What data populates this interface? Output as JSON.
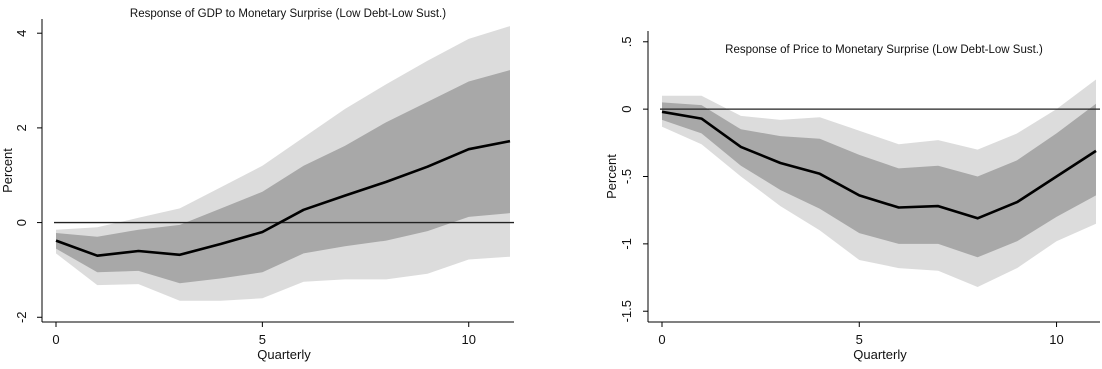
{
  "chart_data": [
    {
      "type": "area",
      "title": "Response of GDP to Monetary Surprise (Low Debt-Low Sust.)",
      "xlabel": "Quarterly",
      "ylabel": "Percent",
      "xlim": [
        0,
        11
      ],
      "ylim": [
        -2.1,
        4.3
      ],
      "xticks": [
        {
          "v": 0,
          "label": "0"
        },
        {
          "v": 5,
          "label": "5"
        },
        {
          "v": 10,
          "label": "10"
        }
      ],
      "yticks": [
        {
          "v": -2,
          "label": "-2"
        },
        {
          "v": 0,
          "label": "0"
        },
        {
          "v": 2,
          "label": "2"
        },
        {
          "v": 4,
          "label": "4"
        }
      ],
      "reference_line": 0,
      "grid": false,
      "x": [
        0,
        1,
        2,
        3,
        4,
        5,
        6,
        7,
        8,
        9,
        10,
        11
      ],
      "series": [
        {
          "values": [
            -0.38,
            -0.7,
            -0.6,
            -0.68,
            -0.45,
            -0.2,
            0.27,
            0.57,
            0.86,
            1.18,
            1.55,
            1.72
          ]
        }
      ],
      "bands": [
        {
          "level": "outer",
          "upper": [
            -0.15,
            -0.1,
            0.1,
            0.3,
            0.75,
            1.2,
            1.8,
            2.4,
            2.92,
            3.42,
            3.88,
            4.15
          ],
          "lower": [
            -0.65,
            -1.32,
            -1.3,
            -1.65,
            -1.65,
            -1.6,
            -1.25,
            -1.2,
            -1.2,
            -1.08,
            -0.78,
            -0.72
          ]
        },
        {
          "level": "inner",
          "upper": [
            -0.22,
            -0.3,
            -0.15,
            -0.05,
            0.3,
            0.65,
            1.2,
            1.62,
            2.12,
            2.55,
            2.98,
            3.22
          ],
          "lower": [
            -0.55,
            -1.05,
            -1.02,
            -1.28,
            -1.18,
            -1.05,
            -0.65,
            -0.5,
            -0.38,
            -0.18,
            0.12,
            0.2
          ]
        }
      ]
    },
    {
      "type": "area",
      "title": "Response of Price to Monetary Surprise (Low Debt-Low Sust.)",
      "xlabel": "Quarterly",
      "ylabel": "Percent",
      "xlim": [
        0,
        11
      ],
      "ylim": [
        -1.58,
        0.58
      ],
      "xticks": [
        {
          "v": 0,
          "label": "0"
        },
        {
          "v": 5,
          "label": "5"
        },
        {
          "v": 10,
          "label": "10"
        }
      ],
      "yticks": [
        {
          "v": -1.5,
          "label": "-1.5"
        },
        {
          "v": -1,
          "label": "-1"
        },
        {
          "v": -0.5,
          "label": "-.5"
        },
        {
          "v": 0,
          "label": "0"
        },
        {
          "v": 0.5,
          "label": ".5"
        }
      ],
      "reference_line": 0,
      "grid": false,
      "x": [
        0,
        1,
        2,
        3,
        4,
        5,
        6,
        7,
        8,
        9,
        10,
        11
      ],
      "series": [
        {
          "values": [
            -0.02,
            -0.07,
            -0.28,
            -0.4,
            -0.48,
            -0.64,
            -0.73,
            -0.72,
            -0.81,
            -0.69,
            -0.5,
            -0.31
          ]
        }
      ],
      "bands": [
        {
          "level": "outer",
          "upper": [
            0.1,
            0.1,
            -0.05,
            -0.08,
            -0.06,
            -0.16,
            -0.26,
            -0.23,
            -0.3,
            -0.18,
            0.0,
            0.22
          ],
          "lower": [
            -0.13,
            -0.26,
            -0.5,
            -0.72,
            -0.9,
            -1.12,
            -1.18,
            -1.2,
            -1.32,
            -1.18,
            -0.98,
            -0.85
          ]
        },
        {
          "level": "inner",
          "upper": [
            0.05,
            0.03,
            -0.15,
            -0.2,
            -0.22,
            -0.34,
            -0.44,
            -0.42,
            -0.5,
            -0.38,
            -0.18,
            0.04
          ],
          "lower": [
            -0.08,
            -0.18,
            -0.42,
            -0.6,
            -0.74,
            -0.92,
            -1.0,
            -1.0,
            -1.1,
            -0.98,
            -0.8,
            -0.64
          ]
        }
      ]
    }
  ],
  "colors": {
    "outer_band": "#dcdcdc",
    "inner_band": "#a8a8a8",
    "line": "#000000",
    "axis": "#000000",
    "reference": "#222222"
  }
}
